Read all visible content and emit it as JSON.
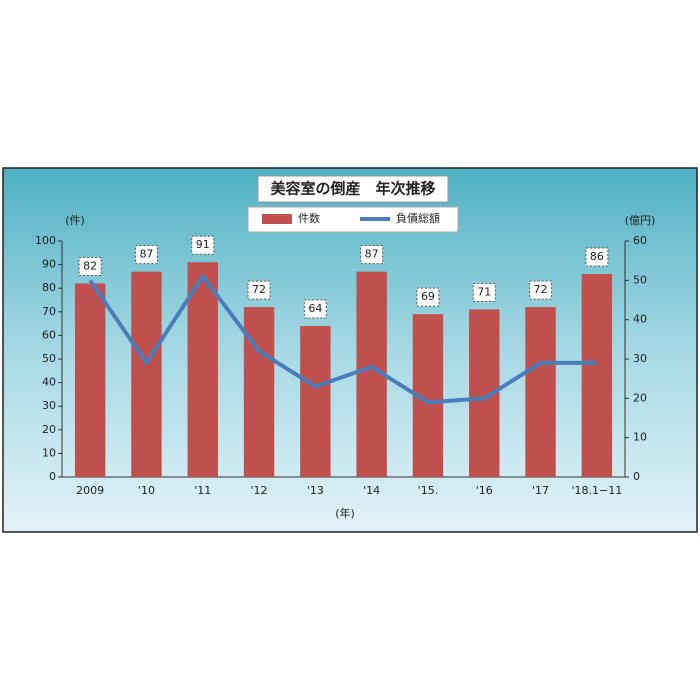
{
  "chart_data": {
    "type": "bar",
    "title": "美容室の倒産　年次推移",
    "categories": [
      "2009",
      "'10",
      "'11",
      "'12",
      "'13",
      "'14",
      "'15.",
      "'16",
      "'17",
      "'18.1−11"
    ],
    "series": [
      {
        "name": "件数",
        "color": "#c0504d",
        "values": [
          82,
          87,
          91,
          72,
          64,
          87,
          69,
          71,
          72,
          86
        ]
      },
      {
        "name": "負債総額",
        "color": "#4a7ebb",
        "type": "line",
        "axis": "y2",
        "values": [
          50,
          29,
          51,
          32,
          23,
          28,
          19,
          20,
          29,
          29
        ]
      }
    ],
    "y_label": "(件)",
    "y2_label": "(億円)",
    "x_label": "(年)",
    "ylim": [
      0,
      100
    ],
    "yticks": [
      0,
      10,
      20,
      30,
      40,
      50,
      60,
      70,
      80,
      90,
      100
    ],
    "y2lim": [
      0,
      60
    ],
    "y2ticks": [
      0,
      10,
      20,
      30,
      40,
      50,
      60
    ],
    "grid": false,
    "legend": "top"
  }
}
